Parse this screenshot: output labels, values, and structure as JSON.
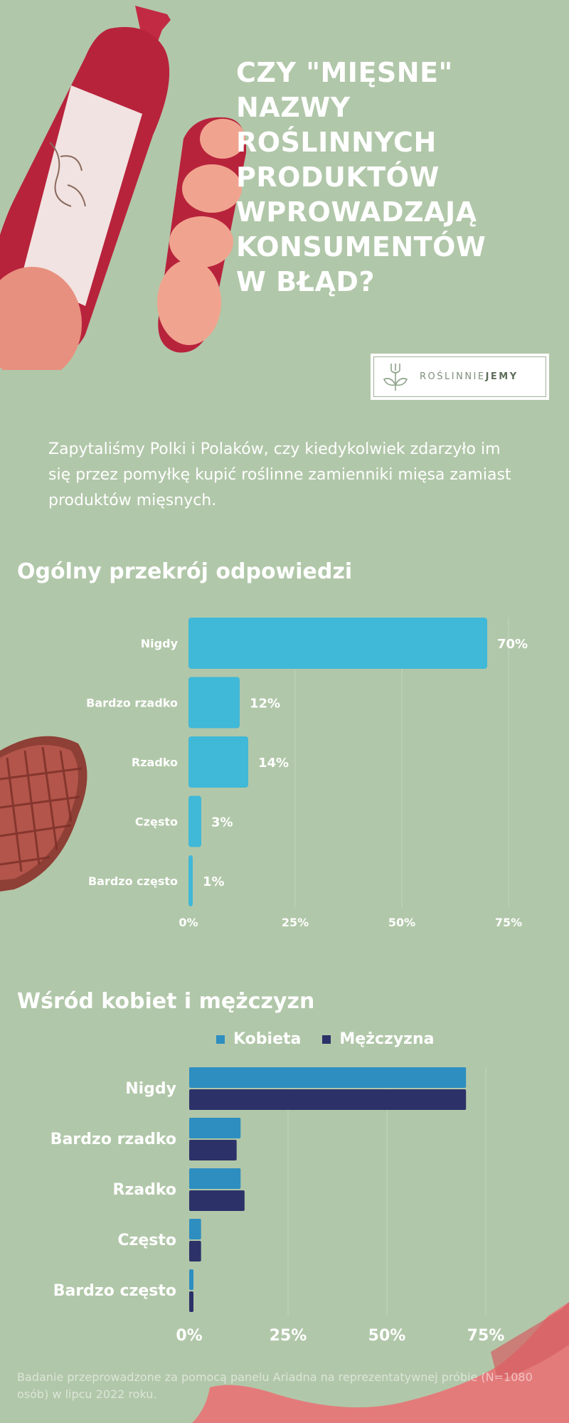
{
  "title": "CZY \"MIĘSNE\"\nNAZWY\nROŚLINNYCH\nPRODUKTÓW\nWPROWADZAJĄ\nKONSUMENTÓW\nW BŁĄD?",
  "logo": {
    "text_light": "ROŚLINNIE",
    "text_bold": "JEMY"
  },
  "intro": "Zapytaliśmy Polki i Polaków, czy kiedykolwiek zdarzyło im się przez pomyłkę kupić roślinne zamienniki mięsa zamiast produktów mięsnych.",
  "footnote": "Badanie przeprowadzone za pomocą panelu Ariadna na reprezentatywnej próbie (N=1080 osób) w lipcu 2022 roku.",
  "colors": {
    "background": "#b1c7a9",
    "bar_overall": "#40b8d8",
    "bar_women": "#2e8ec0",
    "bar_men": "#2c3268",
    "text": "#ffffff"
  },
  "chart_data": [
    {
      "type": "bar",
      "orientation": "horizontal",
      "title": "Ogólny przekrój odpowiedzi",
      "categories": [
        "Nigdy",
        "Bardzo rzadko",
        "Rzadko",
        "Często",
        "Bardzo często"
      ],
      "values": [
        70,
        12,
        14,
        3,
        1
      ],
      "data_labels": [
        "70%",
        "12%",
        "14%",
        "3%",
        "1%"
      ],
      "xlim": [
        0,
        75
      ],
      "xticks": [
        "0%",
        "25%",
        "50%",
        "75%"
      ],
      "grid": true
    },
    {
      "type": "bar",
      "orientation": "horizontal",
      "title": "Wśród kobiet i mężczyzn",
      "categories": [
        "Nigdy",
        "Bardzo rzadko",
        "Rzadko",
        "Często",
        "Bardzo często"
      ],
      "series": [
        {
          "name": "Kobieta",
          "values": [
            70,
            13,
            13,
            3,
            1
          ]
        },
        {
          "name": "Mężczyzna",
          "values": [
            70,
            12,
            14,
            3,
            1
          ]
        }
      ],
      "xlim": [
        0,
        75
      ],
      "xticks": [
        "0%",
        "25%",
        "50%",
        "75%"
      ],
      "legend": "top",
      "grid": true
    }
  ]
}
